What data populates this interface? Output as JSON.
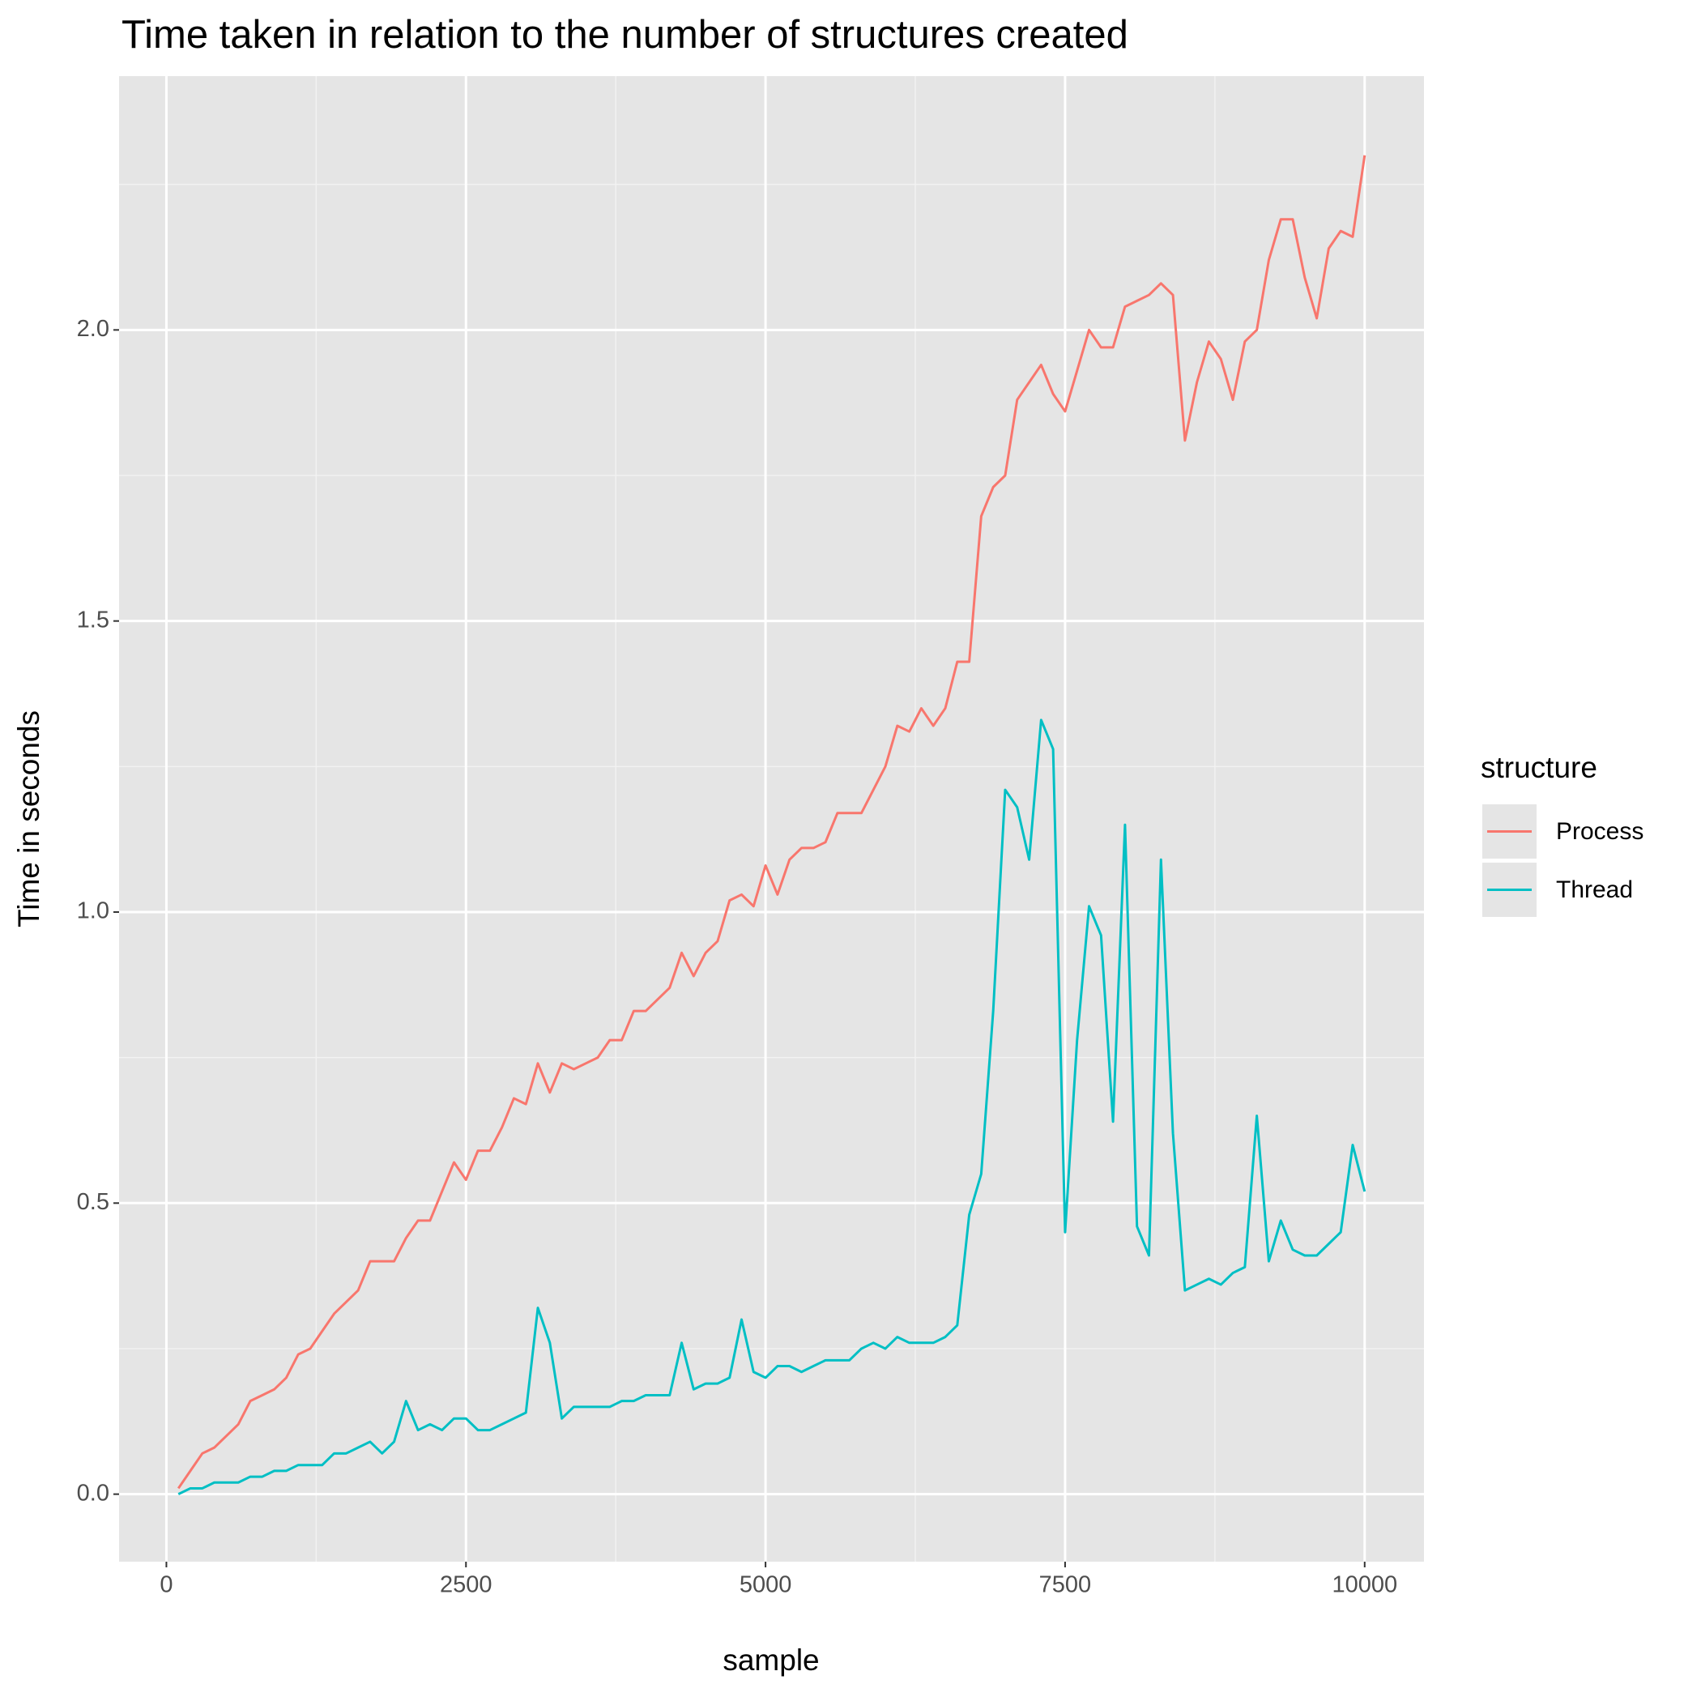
{
  "chart_data": {
    "type": "line",
    "title": "Time taken in relation to the number of structures created",
    "x_label": "sample",
    "y_label": "Time in seconds",
    "legend_title": "structure",
    "legend_position": "right",
    "grid": true,
    "x": [
      100,
      200,
      300,
      400,
      500,
      600,
      700,
      800,
      900,
      1000,
      1100,
      1200,
      1300,
      1400,
      1500,
      1600,
      1700,
      1800,
      1900,
      2000,
      2100,
      2200,
      2300,
      2400,
      2500,
      2600,
      2700,
      2800,
      2900,
      3000,
      3100,
      3200,
      3300,
      3400,
      3500,
      3600,
      3700,
      3800,
      3900,
      4000,
      4100,
      4200,
      4300,
      4400,
      4500,
      4600,
      4700,
      4800,
      4900,
      5000,
      5100,
      5200,
      5300,
      5400,
      5500,
      5600,
      5700,
      5800,
      5900,
      6000,
      6100,
      6200,
      6300,
      6400,
      6500,
      6600,
      6700,
      6800,
      6900,
      7000,
      7100,
      7200,
      7300,
      7400,
      7500,
      7600,
      7700,
      7800,
      7900,
      8000,
      8100,
      8200,
      8300,
      8400,
      8500,
      8600,
      8700,
      8800,
      8900,
      9000,
      9100,
      9200,
      9300,
      9400,
      9500,
      9600,
      9700,
      9800,
      9900,
      10000
    ],
    "series": [
      {
        "name": "Process",
        "color": "#f8766d",
        "values": [
          0.01,
          0.04,
          0.07,
          0.08,
          0.1,
          0.12,
          0.16,
          0.17,
          0.18,
          0.2,
          0.24,
          0.25,
          0.28,
          0.31,
          0.33,
          0.35,
          0.4,
          0.4,
          0.4,
          0.44,
          0.47,
          0.47,
          0.52,
          0.57,
          0.54,
          0.59,
          0.59,
          0.63,
          0.68,
          0.67,
          0.74,
          0.69,
          0.74,
          0.73,
          0.74,
          0.75,
          0.78,
          0.78,
          0.83,
          0.83,
          0.85,
          0.87,
          0.93,
          0.89,
          0.93,
          0.95,
          1.02,
          1.03,
          1.01,
          1.08,
          1.03,
          1.09,
          1.11,
          1.11,
          1.12,
          1.17,
          1.17,
          1.17,
          1.21,
          1.25,
          1.32,
          1.31,
          1.35,
          1.32,
          1.35,
          1.43,
          1.43,
          1.68,
          1.73,
          1.75,
          1.88,
          1.91,
          1.94,
          1.89,
          1.86,
          1.93,
          2.0,
          1.97,
          1.97,
          2.04,
          2.05,
          2.06,
          2.08,
          2.06,
          1.81,
          1.91,
          1.98,
          1.95,
          1.88,
          1.98,
          2.0,
          2.12,
          2.19,
          2.19,
          2.09,
          2.02,
          2.14,
          2.17,
          2.16,
          2.3
        ]
      },
      {
        "name": "Thread",
        "color": "#00bfc4",
        "values": [
          0.0,
          0.01,
          0.01,
          0.02,
          0.02,
          0.02,
          0.03,
          0.03,
          0.04,
          0.04,
          0.05,
          0.05,
          0.05,
          0.07,
          0.07,
          0.08,
          0.09,
          0.07,
          0.09,
          0.16,
          0.11,
          0.12,
          0.11,
          0.13,
          0.13,
          0.11,
          0.11,
          0.12,
          0.13,
          0.14,
          0.32,
          0.26,
          0.13,
          0.15,
          0.15,
          0.15,
          0.15,
          0.16,
          0.16,
          0.17,
          0.17,
          0.17,
          0.26,
          0.18,
          0.19,
          0.19,
          0.2,
          0.3,
          0.21,
          0.2,
          0.22,
          0.22,
          0.21,
          0.22,
          0.23,
          0.23,
          0.23,
          0.25,
          0.26,
          0.25,
          0.27,
          0.26,
          0.26,
          0.26,
          0.27,
          0.29,
          0.48,
          0.55,
          0.83,
          1.21,
          1.18,
          1.09,
          1.33,
          1.28,
          0.45,
          0.78,
          1.01,
          0.96,
          0.64,
          1.15,
          0.46,
          0.41,
          1.09,
          0.62,
          0.35,
          0.36,
          0.37,
          0.36,
          0.38,
          0.39,
          0.65,
          0.4,
          0.47,
          0.42,
          0.41,
          0.41,
          0.43,
          0.45,
          0.6,
          0.52
        ]
      }
    ],
    "xlim": [
      -395,
      10495
    ],
    "ylim": [
      -0.116,
      2.436
    ],
    "xticks": [
      0,
      2500,
      5000,
      7500,
      10000
    ],
    "yticks": [
      {
        "value": 0,
        "label": "0.0"
      },
      0.5,
      {
        "value": 1,
        "label": "1.0"
      },
      1.5,
      {
        "value": 2,
        "label": "2.0"
      }
    ],
    "x_minor_breaks": [
      1250,
      3750,
      6250,
      8750
    ],
    "y_minor_breaks": [
      0.25,
      0.75,
      1.25,
      1.75,
      2.25
    ]
  }
}
